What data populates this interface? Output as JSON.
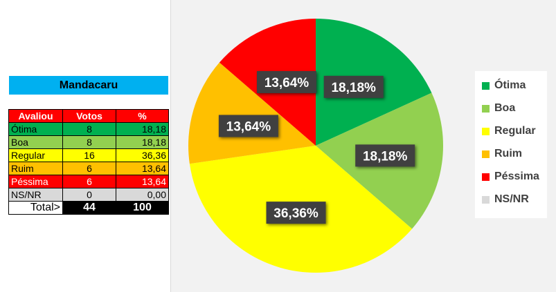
{
  "table": {
    "title": "Mandacaru",
    "headers": [
      "Avaliou",
      "Votos",
      "%"
    ],
    "rows": [
      {
        "label": "Ótima",
        "votes": "8",
        "pct": "18,18",
        "color": "#00b050",
        "text": "#000000"
      },
      {
        "label": "Boa",
        "votes": "8",
        "pct": "18,18",
        "color": "#92d050",
        "text": "#000000"
      },
      {
        "label": "Regular",
        "votes": "16",
        "pct": "36,36",
        "color": "#ffff00",
        "text": "#000000"
      },
      {
        "label": "Ruim",
        "votes": "6",
        "pct": "13,64",
        "color": "#ffc000",
        "text": "#000000"
      },
      {
        "label": "Péssima",
        "votes": "6",
        "pct": "13,64",
        "color": "#ff0000",
        "text": "#ffffff"
      },
      {
        "label": "NS/NR",
        "votes": "0",
        "pct": "0,00",
        "color": "#d9d9d9",
        "text": "#000000"
      }
    ],
    "total_label": "Total>",
    "total_votes": "44",
    "total_pct": "100"
  },
  "chart_data": {
    "type": "pie",
    "categories": [
      "Ótima",
      "Boa",
      "Regular",
      "Ruim",
      "Péssima",
      "NS/NR"
    ],
    "values": [
      18.18,
      18.18,
      36.36,
      13.64,
      13.64,
      0
    ],
    "labels": [
      "18,18%",
      "18,18%",
      "36,36%",
      "13,64%",
      "13,64%",
      ""
    ],
    "colors": [
      "#00b050",
      "#92d050",
      "#ffff00",
      "#ffc000",
      "#ff0000",
      "#d9d9d9"
    ],
    "legend_position": "right"
  }
}
